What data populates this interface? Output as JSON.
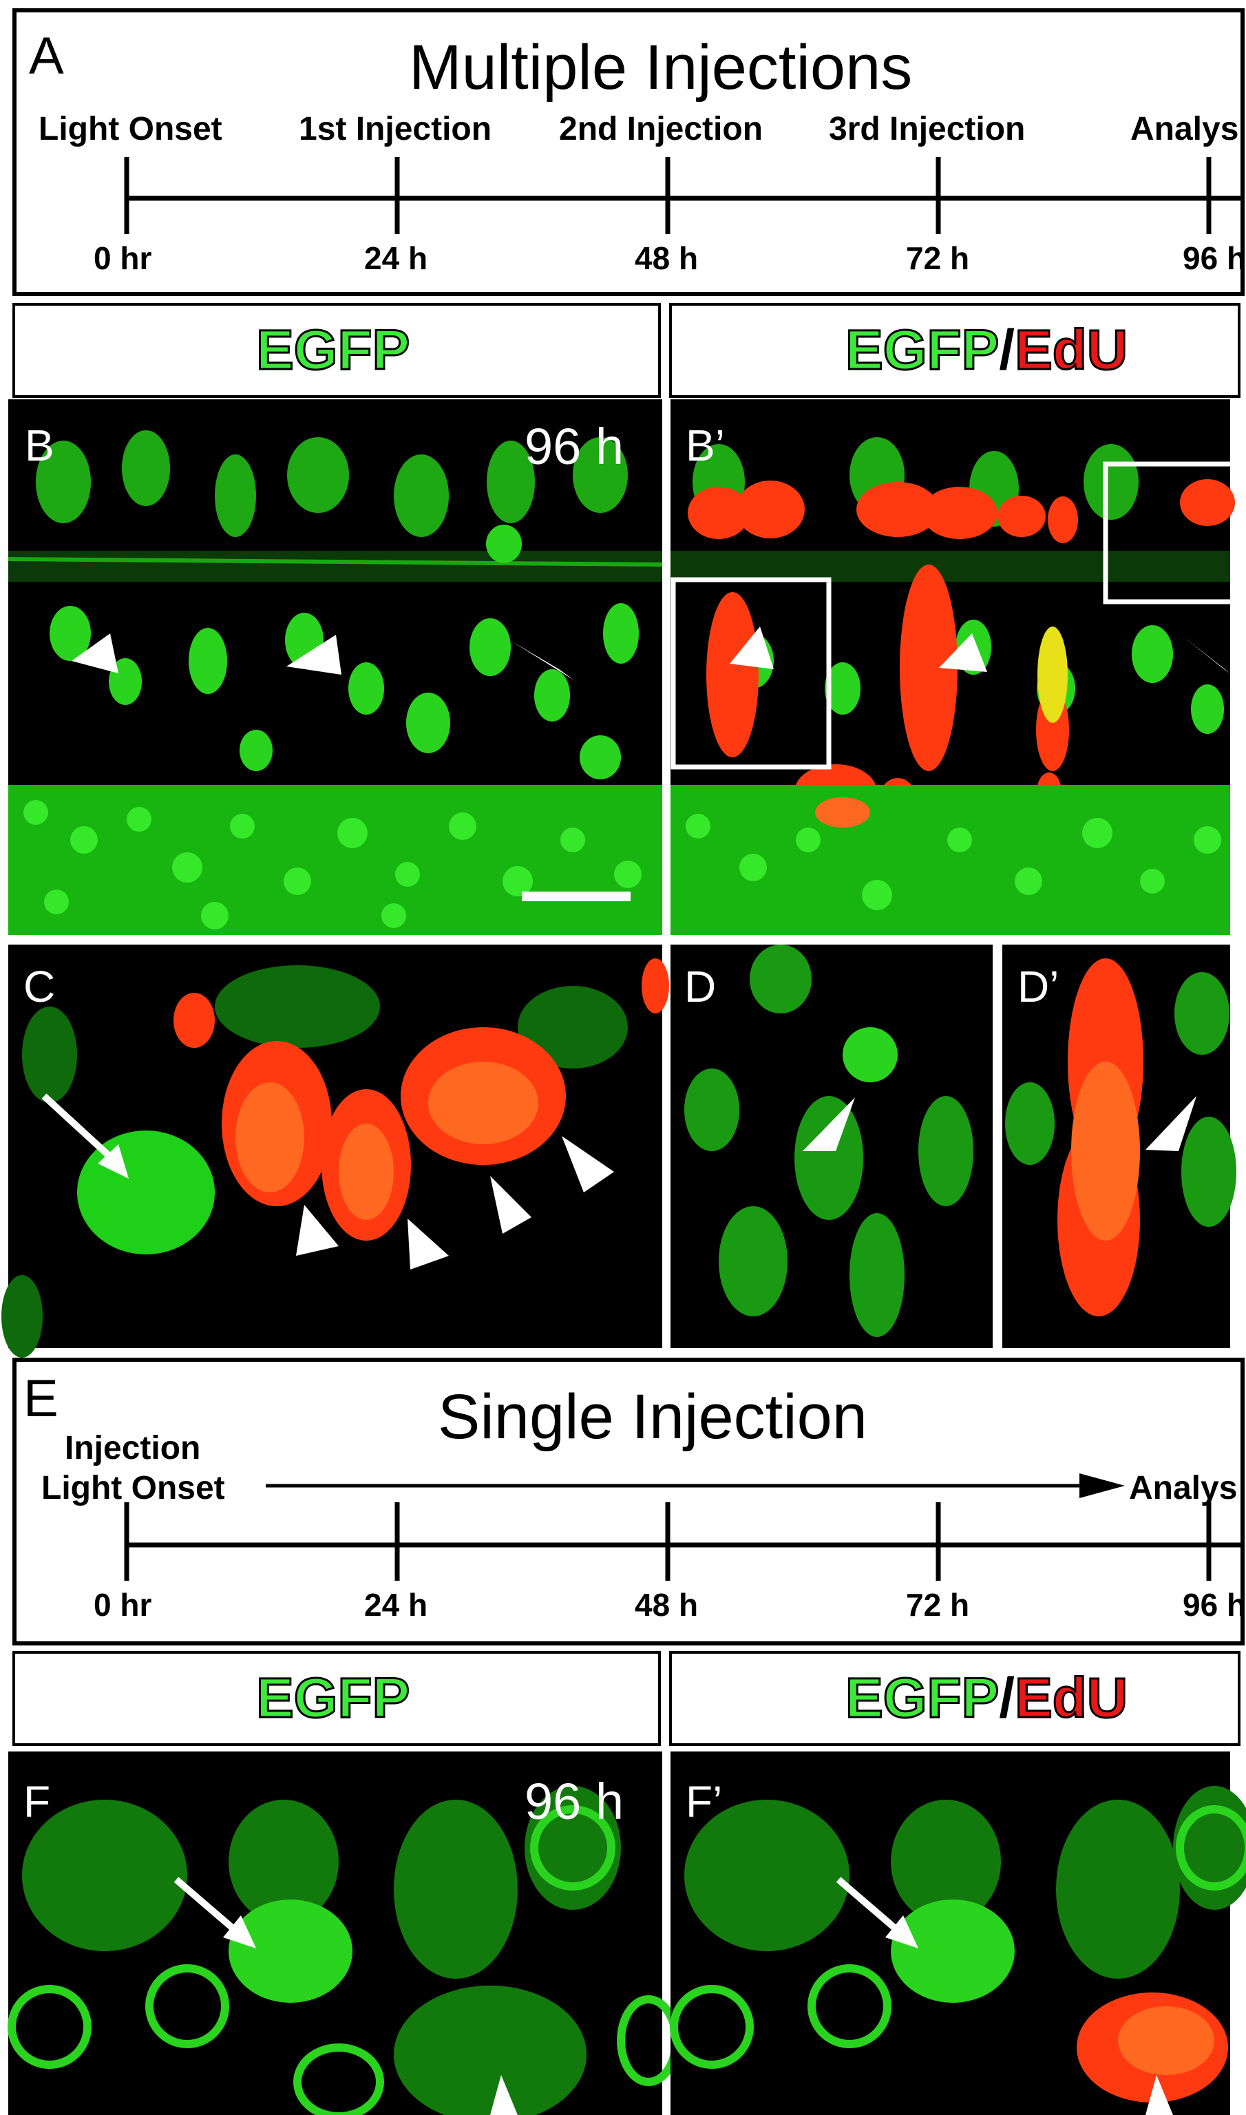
{
  "panelA": {
    "letter": "A",
    "title": "Multiple Injections",
    "events": [
      "Light Onset",
      "1st Injection",
      "2nd Injection",
      "3rd Injection",
      "Analys"
    ],
    "ticks": [
      "0 hr",
      "24 h",
      "48 h",
      "72 h",
      "96 h"
    ]
  },
  "headers": {
    "egfp": "EGFP",
    "slash": "/",
    "edu": "EdU"
  },
  "panelB": {
    "letter": "B",
    "time": "96 h"
  },
  "panelB2": {
    "letter": "B’"
  },
  "panelC": {
    "letter": "C"
  },
  "panelD": {
    "letter": "D"
  },
  "panelD2": {
    "letter": "D’"
  },
  "panelE": {
    "letter": "E",
    "title": "Single Injection",
    "event_top": "Injection",
    "event_bottom": "Light Onset",
    "event_end": "Analys",
    "ticks": [
      "0 hr",
      "24 h",
      "48 h",
      "72 h",
      "96 h"
    ]
  },
  "panelF": {
    "letter": "F",
    "time": "96 h"
  },
  "panelF2": {
    "letter": "F’"
  },
  "colors": {
    "egfp": "#3ee83a",
    "edu": "#e81818",
    "cell_green": "#28c81e",
    "cell_red": "#ff3a10"
  },
  "icons": [
    "arrowhead-icon",
    "arrow-icon",
    "scale-bar"
  ]
}
